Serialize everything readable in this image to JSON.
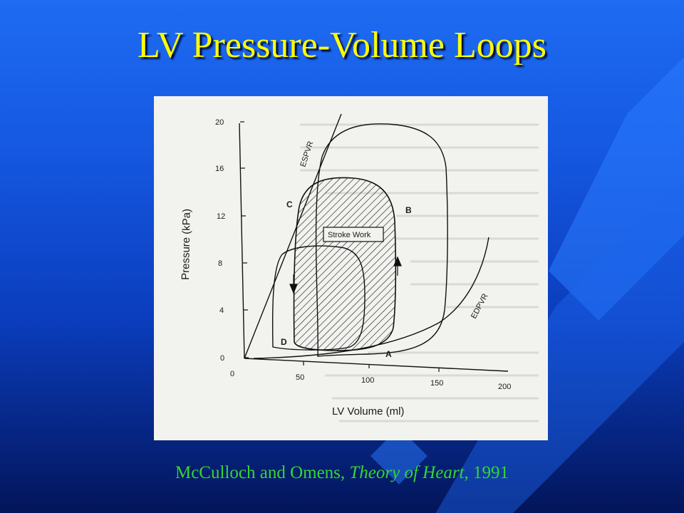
{
  "slide": {
    "title": "LV Pressure-Volume Loops",
    "caption": {
      "authors": "McCulloch and Omens, ",
      "work": "Theory of Heart",
      "year": ", 1991"
    }
  },
  "figure": {
    "x_axis_label": "LV Volume (ml)",
    "y_axis_label": "Pressure (kPa)",
    "x_ticks": [
      "0",
      "50",
      "100",
      "150",
      "200"
    ],
    "y_ticks": [
      "0",
      "4",
      "8",
      "12",
      "16",
      "20"
    ],
    "curve_labels": {
      "espvr": "ESPVR",
      "edpvr": "EDPVR"
    },
    "point_labels": {
      "a": "A",
      "b": "B",
      "c": "C",
      "d": "D"
    },
    "stroke_work_label": "Stroke Work"
  },
  "colors": {
    "title": "#ffff00",
    "caption": "#33d633",
    "background_top": "#1e6cf2",
    "background_bottom": "#03155a"
  }
}
